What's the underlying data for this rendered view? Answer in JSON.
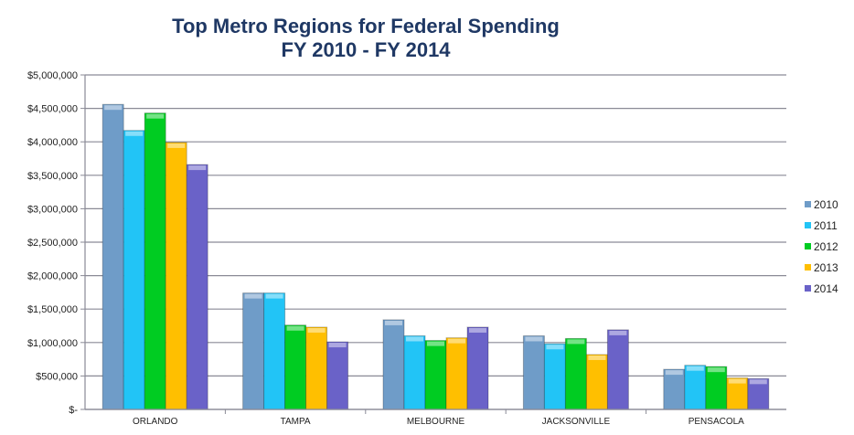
{
  "chart_data": {
    "type": "bar",
    "title_line1": "Top Metro Regions for Federal Spending",
    "title_line2": "FY 2010 - FY 2014",
    "categories": [
      "ORLANDO",
      "TAMPA",
      "MELBOURNE",
      "JACKSONVILLE",
      "PENSACOLA"
    ],
    "series": [
      {
        "name": "2010",
        "color": "#6f9cc8",
        "values": [
          4560000,
          1740000,
          1340000,
          1100000,
          600000
        ]
      },
      {
        "name": "2011",
        "color": "#22c4f6",
        "values": [
          4170000,
          1740000,
          1100000,
          980000,
          660000
        ]
      },
      {
        "name": "2012",
        "color": "#00cc22",
        "values": [
          4430000,
          1260000,
          1030000,
          1060000,
          640000
        ]
      },
      {
        "name": "2013",
        "color": "#ffbf00",
        "values": [
          3990000,
          1230000,
          1070000,
          820000,
          470000
        ]
      },
      {
        "name": "2014",
        "color": "#6a62c8",
        "values": [
          3660000,
          1010000,
          1230000,
          1190000,
          460000
        ]
      }
    ],
    "y_ticks": [
      "$-",
      "$500,000",
      "$1,000,000",
      "$1,500,000",
      "$2,000,000",
      "$2,500,000",
      "$3,000,000",
      "$3,500,000",
      "$4,000,000",
      "$4,500,000",
      "$5,000,000"
    ],
    "ylim": [
      0,
      5000000
    ],
    "grid": true,
    "legend_placement": "right",
    "title_color": "#1f3864"
  }
}
